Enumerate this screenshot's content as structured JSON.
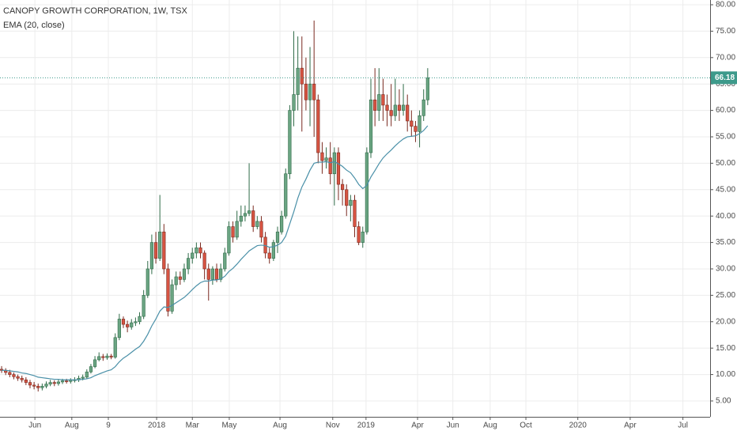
{
  "chart_data": {
    "type": "candlestick",
    "title": "CANOPY GROWTH CORPORATION, 1W, TSX",
    "open": [
      11.0,
      10.8,
      10.4,
      10.0,
      9.6,
      9.3,
      9.0,
      8.5,
      8.0,
      7.8,
      7.5,
      7.8,
      8.2,
      8.5,
      8.3,
      8.6,
      8.8,
      8.7,
      8.9,
      9.0,
      9.3,
      9.5,
      10.5,
      11.5,
      12.8,
      13.4,
      13.2,
      13.5,
      13.3,
      17.0,
      20.5,
      19.5,
      19.0,
      19.8,
      20.0,
      21.0,
      25.0,
      30.0,
      35.0,
      32.0,
      37.0,
      30.0,
      22.0,
      27.0,
      28.5,
      28.0,
      30.0,
      32.0,
      33.0,
      34.0,
      33.0,
      30.0,
      28.0,
      30.0,
      28.0,
      30.0,
      33.0,
      38.0,
      36.0,
      39.0,
      40.0,
      40.5,
      41.0,
      38.0,
      39.0,
      36.0,
      33.0,
      32.0,
      35.0,
      37.0,
      40.0,
      48.0,
      60.0,
      63.0,
      68.0,
      65.0,
      62.0,
      65.0,
      62.0,
      52.0,
      50.5,
      51.0,
      48.0,
      52.0,
      46.0,
      45.0,
      42.0,
      43.0,
      38.0,
      35.0,
      37.0,
      52.0,
      62.0,
      60.0,
      63.0,
      61.0,
      60.0,
      59.0,
      61.0,
      60.0,
      61.0,
      58.0,
      57.0,
      56.0,
      59.0,
      62.0
    ],
    "high": [
      11.6,
      11.2,
      10.9,
      10.4,
      10.0,
      9.8,
      9.5,
      9.0,
      8.6,
      8.3,
      8.3,
      8.7,
      9.0,
      8.9,
      9.1,
      9.2,
      9.2,
      9.3,
      9.5,
      9.8,
      10.0,
      11.0,
      12.0,
      13.5,
      14.2,
      13.9,
      14.0,
      13.9,
      17.8,
      21.5,
      21.0,
      20.2,
      20.5,
      20.8,
      21.8,
      26.0,
      31.5,
      36.5,
      37.0,
      44.0,
      38.5,
      31.0,
      28.0,
      29.5,
      29.5,
      31.0,
      33.0,
      34.0,
      35.0,
      35.0,
      33.5,
      31.0,
      30.5,
      31.0,
      31.0,
      34.0,
      39.0,
      39.0,
      41.0,
      42.0,
      42.0,
      50.0,
      42.0,
      40.0,
      40.0,
      37.0,
      34.0,
      35.5,
      38.0,
      41.0,
      49.0,
      61.0,
      75.0,
      74.0,
      74.0,
      70.0,
      72.0,
      77.0,
      63.0,
      54.0,
      53.0,
      54.0,
      53.0,
      53.0,
      47.0,
      46.0,
      44.0,
      44.0,
      39.0,
      38.0,
      53.0,
      66.0,
      68.0,
      68.0,
      66.0,
      63.0,
      65.0,
      66.0,
      64.0,
      65.0,
      63.0,
      60.0,
      58.0,
      60.0,
      64.0,
      68.0
    ],
    "low": [
      10.3,
      9.9,
      9.5,
      9.1,
      8.8,
      8.5,
      8.0,
      7.4,
      7.2,
      6.8,
      7.0,
      7.4,
      7.8,
      7.8,
      7.9,
      8.2,
      8.3,
      8.3,
      8.5,
      8.6,
      8.9,
      9.2,
      10.2,
      11.2,
      12.5,
      12.6,
      12.8,
      12.9,
      13.0,
      16.5,
      18.8,
      18.0,
      18.5,
      19.2,
      19.5,
      20.5,
      24.5,
      29.0,
      31.0,
      31.5,
      29.0,
      21.0,
      21.5,
      26.0,
      27.0,
      27.5,
      29.0,
      31.0,
      32.0,
      32.0,
      28.0,
      24.0,
      27.0,
      27.5,
      27.5,
      29.5,
      32.5,
      35.0,
      35.5,
      38.0,
      39.0,
      40.0,
      37.0,
      37.5,
      35.0,
      32.0,
      31.0,
      31.5,
      33.0,
      36.5,
      39.5,
      47.0,
      57.0,
      60.0,
      56.0,
      60.0,
      57.0,
      55.0,
      50.0,
      48.0,
      49.0,
      46.0,
      42.0,
      43.0,
      42.0,
      40.0,
      39.0,
      36.0,
      34.5,
      34.0,
      36.5,
      51.0,
      57.0,
      58.0,
      58.0,
      57.0,
      57.0,
      58.0,
      58.0,
      59.0,
      56.0,
      55.0,
      54.0,
      53.0,
      58.0,
      61.0
    ],
    "close": [
      10.8,
      10.4,
      10.0,
      9.6,
      9.3,
      9.0,
      8.5,
      8.0,
      7.8,
      7.5,
      7.8,
      8.2,
      8.5,
      8.3,
      8.6,
      8.8,
      8.7,
      8.9,
      9.0,
      9.3,
      9.5,
      10.5,
      11.5,
      12.8,
      13.4,
      13.2,
      13.5,
      13.3,
      17.0,
      20.5,
      19.5,
      19.0,
      19.8,
      20.0,
      21.0,
      25.0,
      30.0,
      35.0,
      32.0,
      37.0,
      30.0,
      22.0,
      27.0,
      28.5,
      28.0,
      30.0,
      32.0,
      33.0,
      34.0,
      33.0,
      30.0,
      28.0,
      30.0,
      28.0,
      30.0,
      33.0,
      38.0,
      36.0,
      39.0,
      40.0,
      40.5,
      41.0,
      38.0,
      39.0,
      36.0,
      33.0,
      32.0,
      35.0,
      37.0,
      40.0,
      48.0,
      60.0,
      63.0,
      68.0,
      65.0,
      62.0,
      65.0,
      62.0,
      52.0,
      50.5,
      51.0,
      48.0,
      52.0,
      46.0,
      45.0,
      42.0,
      43.0,
      38.0,
      35.0,
      37.0,
      52.0,
      62.0,
      60.0,
      63.0,
      61.0,
      60.0,
      59.0,
      61.0,
      60.0,
      61.0,
      58.0,
      57.0,
      56.0,
      59.0,
      62.0,
      66.18
    ],
    "up_color": "#6ba583",
    "down_color": "#d75442",
    "series": [
      {
        "name": "EMA (20, close)",
        "color": "#4a90a8",
        "values": [
          10.8,
          10.8,
          10.7,
          10.6,
          10.5,
          10.3,
          10.2,
          10.0,
          9.8,
          9.5,
          9.4,
          9.3,
          9.2,
          9.1,
          9.1,
          9.0,
          9.0,
          9.0,
          9.0,
          9.0,
          9.1,
          9.2,
          9.4,
          9.8,
          10.1,
          10.4,
          10.7,
          10.9,
          11.5,
          12.4,
          13.1,
          13.6,
          14.2,
          14.8,
          15.3,
          16.3,
          17.6,
          19.2,
          20.5,
          22.0,
          22.8,
          22.7,
          23.1,
          23.6,
          24.1,
          24.6,
          25.3,
          26.1,
          26.8,
          27.4,
          27.7,
          27.7,
          27.9,
          27.9,
          28.1,
          28.6,
          29.5,
          30.1,
          30.9,
          31.8,
          32.6,
          33.4,
          33.9,
          34.4,
          34.5,
          34.4,
          34.1,
          34.2,
          34.5,
          35.0,
          36.2,
          38.5,
          40.8,
          43.4,
          45.5,
          47.0,
          48.7,
          50.0,
          50.2,
          50.2,
          50.3,
          50.1,
          50.3,
          49.9,
          49.4,
          48.7,
          48.2,
          47.2,
          46.0,
          45.2,
          45.8,
          47.4,
          48.6,
          49.9,
          51.0,
          51.8,
          52.5,
          53.3,
          54.0,
          54.6,
          55.0,
          55.1,
          55.2,
          55.6,
          56.2,
          57.1
        ]
      }
    ],
    "last_price": 66.18,
    "last_price_color": "#3d9a8b",
    "xlim": [
      -0.4,
      174.6
    ],
    "xticks": [
      {
        "value": 8.2,
        "label": "Jun"
      },
      {
        "value": 17.3,
        "label": "Aug"
      },
      {
        "value": 26.3,
        "label": "9"
      },
      {
        "value": 38.2,
        "label": "2018"
      },
      {
        "value": 47.0,
        "label": "Mar"
      },
      {
        "value": 56.1,
        "label": "May"
      },
      {
        "value": 68.6,
        "label": "Aug"
      },
      {
        "value": 81.6,
        "label": "Nov"
      },
      {
        "value": 89.8,
        "label": "2019"
      },
      {
        "value": 102.5,
        "label": "Apr"
      },
      {
        "value": 111.2,
        "label": "Jun"
      },
      {
        "value": 120.4,
        "label": "Aug"
      },
      {
        "value": 129.2,
        "label": "Oct"
      },
      {
        "value": 142.0,
        "label": "2020"
      },
      {
        "value": 154.9,
        "label": "Apr"
      },
      {
        "value": 167.9,
        "label": "Jul"
      }
    ],
    "ylim": [
      2.0,
      80.9
    ],
    "yticks": [
      {
        "value": 5,
        "label": "5.00"
      },
      {
        "value": 10,
        "label": "10.00"
      },
      {
        "value": 15,
        "label": "15.00"
      },
      {
        "value": 20,
        "label": "20.00"
      },
      {
        "value": 25,
        "label": "25.00"
      },
      {
        "value": 30,
        "label": "30.00"
      },
      {
        "value": 35,
        "label": "35.00"
      },
      {
        "value": 40,
        "label": "40.00"
      },
      {
        "value": 45,
        "label": "45.00"
      },
      {
        "value": 50,
        "label": "50.00"
      },
      {
        "value": 55,
        "label": "55.00"
      },
      {
        "value": 60,
        "label": "60.00"
      },
      {
        "value": 65,
        "label": "65.00"
      },
      {
        "value": 70,
        "label": "70.00"
      },
      {
        "value": 75,
        "label": "75.00"
      },
      {
        "value": 80,
        "label": "80.00"
      }
    ],
    "grid": true
  }
}
